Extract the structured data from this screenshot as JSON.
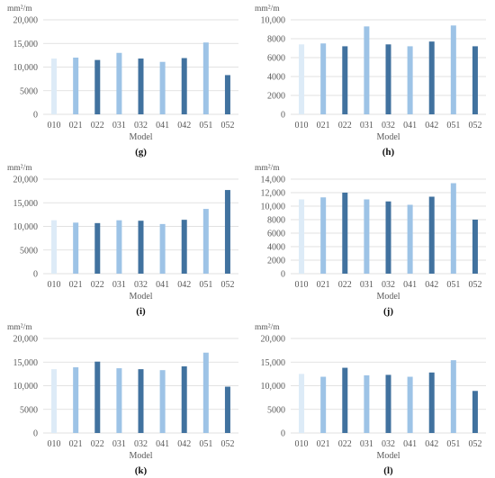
{
  "chart_data": [
    {
      "panel": "(g)",
      "type": "bar",
      "ylabel": "mm²/m",
      "xlabel": "Model",
      "categories": [
        "010",
        "021",
        "022",
        "031",
        "032",
        "041",
        "042",
        "051",
        "052"
      ],
      "values": [
        11800,
        12000,
        11500,
        13000,
        11800,
        11100,
        11900,
        15200,
        8300
      ],
      "ylim": [
        0,
        20000
      ],
      "yticks": [
        0,
        5000,
        10000,
        15000,
        20000
      ],
      "yticklabels": [
        "0",
        "5000",
        "10,000",
        "15,000",
        "20,000"
      ],
      "colors": [
        "#DDEBF7",
        "#9DC3E6",
        "#41729F",
        "#9DC3E6",
        "#41729F",
        "#9DC3E6",
        "#41729F",
        "#9DC3E6",
        "#41729F"
      ]
    },
    {
      "panel": "(h)",
      "type": "bar",
      "ylabel": "mm²/m",
      "xlabel": "Model",
      "categories": [
        "010",
        "021",
        "022",
        "031",
        "032",
        "041",
        "042",
        "051",
        "052"
      ],
      "values": [
        7400,
        7500,
        7200,
        9300,
        7400,
        7200,
        7700,
        9400,
        7200
      ],
      "ylim": [
        0,
        10000
      ],
      "yticks": [
        0,
        2000,
        4000,
        6000,
        8000,
        10000
      ],
      "yticklabels": [
        "0",
        "2000",
        "4000",
        "6000",
        "8000",
        "10,000"
      ],
      "colors": [
        "#DDEBF7",
        "#9DC3E6",
        "#41729F",
        "#9DC3E6",
        "#41729F",
        "#9DC3E6",
        "#41729F",
        "#9DC3E6",
        "#41729F"
      ]
    },
    {
      "panel": "(i)",
      "type": "bar",
      "ylabel": "mm²/m",
      "xlabel": "Model",
      "categories": [
        "010",
        "021",
        "022",
        "031",
        "032",
        "041",
        "042",
        "051",
        "052"
      ],
      "values": [
        11300,
        10800,
        10700,
        11300,
        11200,
        10500,
        11400,
        13700,
        17700
      ],
      "ylim": [
        0,
        20000
      ],
      "yticks": [
        0,
        5000,
        10000,
        15000,
        20000
      ],
      "yticklabels": [
        "0",
        "5000",
        "10,000",
        "15,000",
        "20,000"
      ],
      "colors": [
        "#DDEBF7",
        "#9DC3E6",
        "#41729F",
        "#9DC3E6",
        "#41729F",
        "#9DC3E6",
        "#41729F",
        "#9DC3E6",
        "#41729F"
      ]
    },
    {
      "panel": "(j)",
      "type": "bar",
      "ylabel": "mm²/m",
      "xlabel": "Model",
      "categories": [
        "010",
        "021",
        "022",
        "031",
        "032",
        "041",
        "042",
        "051",
        "052"
      ],
      "values": [
        11000,
        11300,
        12000,
        11000,
        10700,
        10200,
        11400,
        13400,
        8000
      ],
      "ylim": [
        0,
        14000
      ],
      "yticks": [
        0,
        2000,
        4000,
        6000,
        8000,
        10000,
        12000,
        14000
      ],
      "yticklabels": [
        "0",
        "2000",
        "4000",
        "6000",
        "8000",
        "10,000",
        "12,000",
        "14,000"
      ],
      "colors": [
        "#DDEBF7",
        "#9DC3E6",
        "#41729F",
        "#9DC3E6",
        "#41729F",
        "#9DC3E6",
        "#41729F",
        "#9DC3E6",
        "#41729F"
      ]
    },
    {
      "panel": "(k)",
      "type": "bar",
      "ylabel": "mm²/m",
      "xlabel": "Model",
      "categories": [
        "010",
        "021",
        "022",
        "031",
        "032",
        "041",
        "042",
        "051",
        "052"
      ],
      "values": [
        13500,
        13900,
        15100,
        13700,
        13500,
        13300,
        14100,
        17000,
        9800
      ],
      "ylim": [
        0,
        20000
      ],
      "yticks": [
        0,
        5000,
        10000,
        15000,
        20000
      ],
      "yticklabels": [
        "0",
        "5000",
        "10,000",
        "15,000",
        "20,000"
      ],
      "colors": [
        "#DDEBF7",
        "#9DC3E6",
        "#41729F",
        "#9DC3E6",
        "#41729F",
        "#9DC3E6",
        "#41729F",
        "#9DC3E6",
        "#41729F"
      ]
    },
    {
      "panel": "(l)",
      "type": "bar",
      "ylabel": "mm²/m",
      "xlabel": "Model",
      "categories": [
        "010",
        "021",
        "022",
        "031",
        "032",
        "041",
        "042",
        "051",
        "052"
      ],
      "values": [
        12500,
        11900,
        13800,
        12200,
        12300,
        11900,
        12800,
        15400,
        8900
      ],
      "ylim": [
        0,
        20000
      ],
      "yticks": [
        0,
        5000,
        10000,
        15000,
        20000
      ],
      "yticklabels": [
        "0",
        "5000",
        "10,000",
        "15,000",
        "20,000"
      ],
      "colors": [
        "#DDEBF7",
        "#9DC3E6",
        "#41729F",
        "#9DC3E6",
        "#41729F",
        "#9DC3E6",
        "#41729F",
        "#9DC3E6",
        "#41729F"
      ]
    }
  ]
}
